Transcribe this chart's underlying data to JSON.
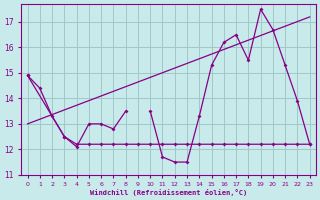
{
  "xlabel": "Windchill (Refroidissement éolien,°C)",
  "bg_color": "#c8eaea",
  "grid_color": "#a0c8c8",
  "line_color": "#880088",
  "xlim": [
    -0.5,
    23.5
  ],
  "ylim": [
    11,
    17.7
  ],
  "xticks": [
    0,
    1,
    2,
    3,
    4,
    5,
    6,
    7,
    8,
    9,
    10,
    11,
    12,
    13,
    14,
    15,
    16,
    17,
    18,
    19,
    20,
    21,
    22,
    23
  ],
  "yticks": [
    11,
    12,
    13,
    14,
    15,
    16,
    17
  ],
  "main_x": [
    0,
    1,
    2,
    3,
    4,
    5,
    6,
    7,
    8,
    10,
    11,
    12,
    13,
    14,
    15,
    16,
    17,
    18,
    19,
    20,
    21,
    22,
    23
  ],
  "main_y": [
    14.9,
    14.4,
    13.3,
    12.5,
    12.1,
    13.0,
    13.0,
    12.8,
    13.5,
    13.5,
    11.7,
    11.5,
    11.5,
    13.3,
    15.3,
    16.2,
    16.5,
    15.5,
    17.5,
    16.7,
    15.3,
    13.9,
    12.2
  ],
  "flat_x": [
    0,
    3,
    4,
    5,
    6,
    7,
    8,
    9,
    10,
    11,
    12,
    13,
    14,
    15,
    16,
    17,
    18,
    19,
    20,
    21,
    22,
    23
  ],
  "flat_y": [
    14.9,
    12.5,
    12.2,
    12.2,
    12.2,
    12.2,
    12.2,
    12.2,
    12.2,
    12.2,
    12.2,
    12.2,
    12.2,
    12.2,
    12.2,
    12.2,
    12.2,
    12.2,
    12.2,
    12.2,
    12.2,
    12.2
  ],
  "trend_x": [
    0,
    23
  ],
  "trend_y": [
    13.0,
    17.2
  ]
}
